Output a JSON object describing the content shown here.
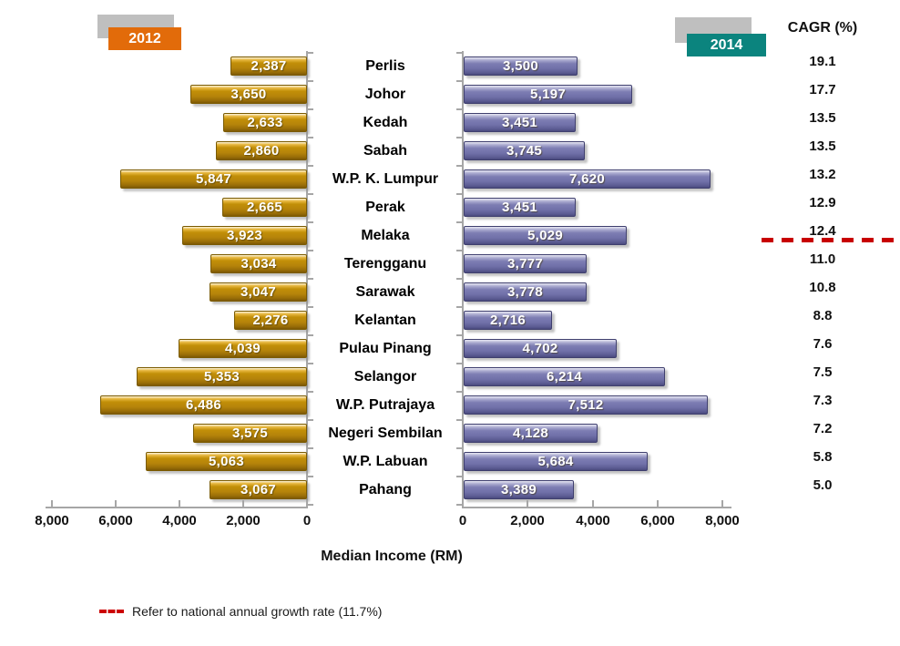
{
  "chart_data": {
    "type": "bar",
    "subtype": "diverging-tornado",
    "xlabel": "Median Income (RM)",
    "axis_range": [
      0,
      8000
    ],
    "grid": false,
    "legend_position": "top",
    "legend": [
      {
        "label": "2012",
        "color": "#E26B0A"
      },
      {
        "label": "2014",
        "color": "#0B847E"
      }
    ],
    "cagr_header": "CAGR (%)",
    "categories": [
      "Perlis",
      "Johor",
      "Kedah",
      "Sabah",
      "W.P. K. Lumpur",
      "Perak",
      "Melaka",
      "Terengganu",
      "Sarawak",
      "Kelantan",
      "Pulau Pinang",
      "Selangor",
      "W.P. Putrajaya",
      "Negeri Sembilan",
      "W.P. Labuan",
      "Pahang"
    ],
    "series": [
      {
        "name": "2012",
        "color": "#BE8C0A",
        "values": [
          2387,
          3650,
          2633,
          2860,
          5847,
          2665,
          3923,
          3034,
          3047,
          2276,
          4039,
          5353,
          6486,
          3575,
          5063,
          3067
        ]
      },
      {
        "name": "2014",
        "color": "#7575AD",
        "values": [
          3500,
          5197,
          3451,
          3745,
          7620,
          3451,
          5029,
          3777,
          3778,
          2716,
          4702,
          6214,
          7512,
          4128,
          5684,
          3389
        ]
      }
    ],
    "cagr_values": [
      19.1,
      17.7,
      13.5,
      13.5,
      13.2,
      12.9,
      12.4,
      11.0,
      10.8,
      8.8,
      7.6,
      7.5,
      7.3,
      7.2,
      5.8,
      5.0
    ],
    "x_ticks_left": [
      "8,000",
      "6,000",
      "4,000",
      "2,000",
      "0"
    ],
    "x_ticks_right": [
      "0",
      "2,000",
      "4,000",
      "6,000",
      "8,000"
    ],
    "reference_line": {
      "label": "11.7%",
      "color": "#CC0000",
      "after_category": "Melaka"
    },
    "footnote": "Refer to national annual growth rate (11.7%)"
  },
  "colors": {
    "bar_2012": "#BE8C0A",
    "bar_2014": "#7575AD",
    "legend_2012": "#E26B0A",
    "legend_2014": "#0B847E",
    "legend_shadow": "#BFBFBF",
    "reference": "#CC0000",
    "axis": "#A6A6A6"
  }
}
